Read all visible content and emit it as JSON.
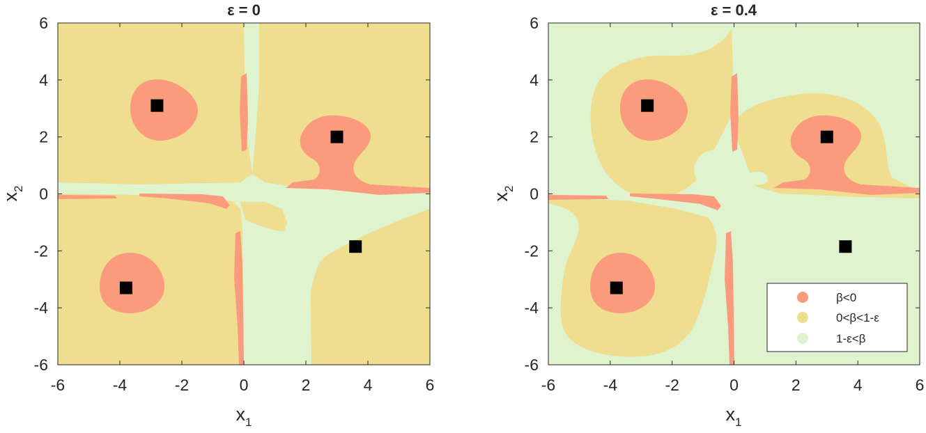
{
  "colors": {
    "beta_neg": "#fa9b7e",
    "beta_mid": "#efdd90",
    "beta_high": "#dff4ce",
    "marker": "#000000"
  },
  "chart_data": [
    {
      "type": "heatmap",
      "title_symbol": "ε",
      "title_rest": " = 0",
      "xlabel": "x",
      "xlabel_sub": "1",
      "ylabel": "x",
      "ylabel_sub": "2",
      "xlim": [
        -6,
        6
      ],
      "ylim": [
        -6,
        6
      ],
      "xticks": [
        "-6",
        "-4",
        "-2",
        "0",
        "2",
        "4",
        "6"
      ],
      "yticks": [
        "-6",
        "-4",
        "-2",
        "0",
        "2",
        "4",
        "6"
      ],
      "markers": [
        {
          "x": -2.8,
          "y": 3.1
        },
        {
          "x": 3.0,
          "y": 2.0
        },
        {
          "x": 3.6,
          "y": -1.85
        },
        {
          "x": -3.8,
          "y": -3.3
        }
      ],
      "grid": false
    },
    {
      "type": "heatmap",
      "title_symbol": "ε",
      "title_rest": " = 0.4",
      "xlabel": "x",
      "xlabel_sub": "1",
      "ylabel": "x",
      "ylabel_sub": "2",
      "xlim": [
        -6,
        6
      ],
      "ylim": [
        -6,
        6
      ],
      "xticks": [
        "-6",
        "-4",
        "-2",
        "0",
        "2",
        "4",
        "6"
      ],
      "yticks": [
        "-6",
        "-4",
        "-2",
        "0",
        "2",
        "4",
        "6"
      ],
      "markers": [
        {
          "x": -2.8,
          "y": 3.1
        },
        {
          "x": 3.0,
          "y": 2.0
        },
        {
          "x": 3.6,
          "y": -1.85
        },
        {
          "x": -3.8,
          "y": -3.3
        }
      ],
      "grid": false,
      "legend": {
        "position": "bottom-right",
        "entries": [
          "β<0",
          "0<β<1-ε",
          "1-ε<β"
        ]
      }
    }
  ]
}
